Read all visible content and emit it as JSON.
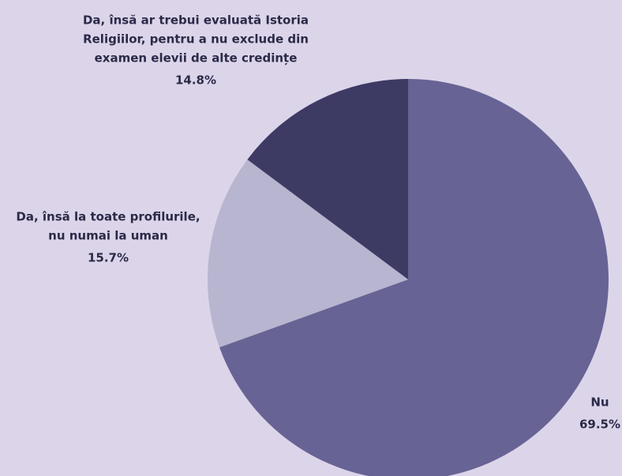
{
  "chart_data": {
    "type": "pie",
    "categories": [
      [
        "Nu"
      ],
      [
        "Da, însă la toate profilurile,",
        "nu numai la uman"
      ],
      [
        "Da, însă ar trebui evaluată Istoria",
        "Religiilor, pentru a nu exclude din",
        "examen elevii de alte credințe"
      ]
    ],
    "values": [
      69.5,
      15.7,
      14.8
    ],
    "value_labels": [
      "69.5%",
      "15.7%",
      "14.8%"
    ],
    "colors": [
      "#676394",
      "#b7b5cf",
      "#3d3a63"
    ]
  }
}
